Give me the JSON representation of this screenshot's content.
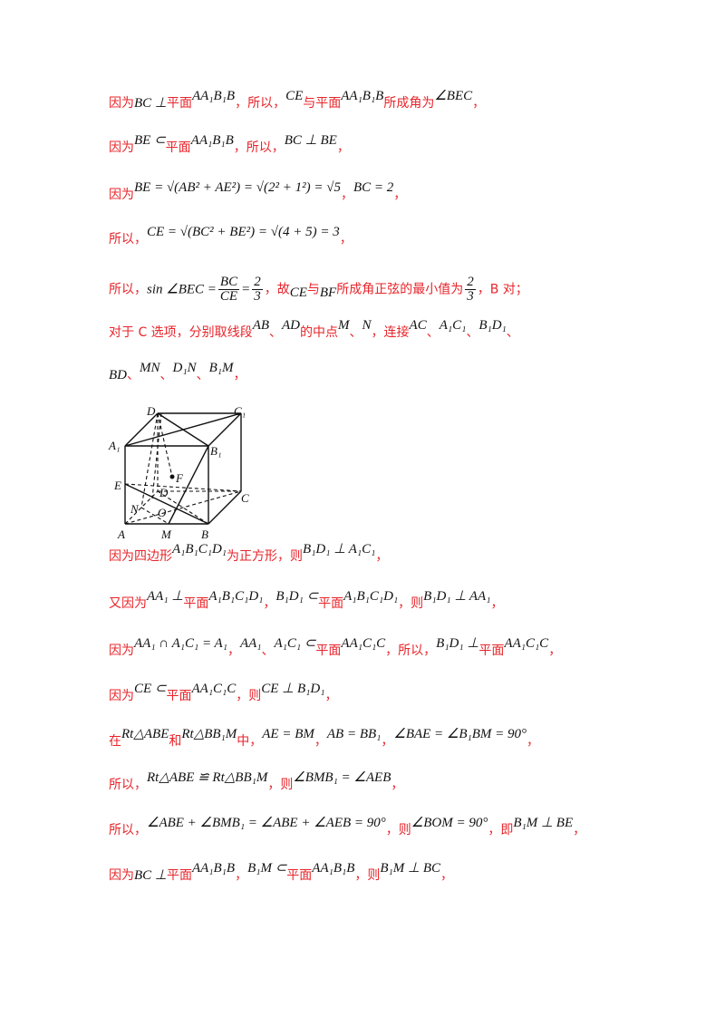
{
  "lines": [
    {
      "parts": [
        [
          "cn",
          "因为"
        ],
        [
          "m",
          "BC ⊥"
        ],
        [
          "cn",
          "平面"
        ],
        [
          "mu",
          "AA₁B₁B"
        ],
        [
          "cn",
          "，所以，"
        ],
        [
          "mu",
          "CE"
        ],
        [
          "cn",
          "与平面"
        ],
        [
          "mu",
          "AA₁B₁B"
        ],
        [
          "cn",
          "所成角为"
        ],
        [
          "mu",
          "∠BEC"
        ],
        [
          "cn",
          "，"
        ]
      ]
    },
    {
      "parts": [
        [
          "cn",
          "因为"
        ],
        [
          "mu",
          "BE ⊂"
        ],
        [
          "cn",
          "平面"
        ],
        [
          "mu",
          "AA₁B₁B"
        ],
        [
          "cn",
          "，所以，"
        ],
        [
          "mu",
          "BC ⊥ BE"
        ],
        [
          "cn",
          "，"
        ]
      ]
    },
    {
      "parts": [
        [
          "cn",
          "因为"
        ],
        [
          "mu",
          "BE = √(AB² + AE²) = √(2² + 1²) = √5"
        ],
        [
          "cn",
          "，"
        ],
        [
          "mu",
          "BC = 2"
        ],
        [
          "cn",
          "，"
        ]
      ]
    },
    {
      "parts": [
        [
          "cn",
          "所以，"
        ],
        [
          "mu",
          "CE = √(BC² + BE²) = √(4 + 5) = 3"
        ],
        [
          "cn",
          "，"
        ]
      ]
    },
    {
      "parts": [
        [
          "cn",
          "所以，"
        ],
        [
          "m",
          "sin ∠BEC ="
        ],
        [
          "frac",
          "BC|CE"
        ],
        [
          "m",
          "="
        ],
        [
          "frac",
          "2|3"
        ],
        [
          "cn",
          "，故"
        ],
        [
          "md",
          "CE"
        ],
        [
          "cn",
          "与"
        ],
        [
          "md",
          "BF"
        ],
        [
          "cn",
          "所成角正弦的最小值为"
        ],
        [
          "frac",
          "2|3"
        ],
        [
          "cn",
          "，B 对；"
        ]
      ]
    },
    {
      "parts": [
        [
          "cn",
          "对于 C 选项，分别取线段"
        ],
        [
          "mu",
          "AB"
        ],
        [
          "cn",
          "、"
        ],
        [
          "mu",
          "AD"
        ],
        [
          "cn",
          "的中点"
        ],
        [
          "mu",
          "M"
        ],
        [
          "cn",
          "、"
        ],
        [
          "mu",
          "N"
        ],
        [
          "cn",
          "，连接"
        ],
        [
          "mu",
          "AC"
        ],
        [
          "cn",
          "、"
        ],
        [
          "mu",
          "A₁C₁"
        ],
        [
          "cn",
          "、"
        ],
        [
          "mu",
          "B₁D₁"
        ],
        [
          "cn",
          "、"
        ]
      ]
    },
    {
      "parts": [
        [
          "m",
          "BD"
        ],
        [
          "cn",
          "、"
        ],
        [
          "mu",
          "MN"
        ],
        [
          "cn",
          "、"
        ],
        [
          "mu",
          "D₁N"
        ],
        [
          "cn",
          "、"
        ],
        [
          "mu",
          "B₁M"
        ],
        [
          "cn",
          "，"
        ]
      ]
    },
    {
      "parts": [
        [
          "cn",
          "因为四边形"
        ],
        [
          "mu",
          "A₁B₁C₁D₁"
        ],
        [
          "cn",
          "为正方形，则"
        ],
        [
          "mu",
          "B₁D₁ ⊥ A₁C₁"
        ],
        [
          "cn",
          "，"
        ]
      ]
    },
    {
      "parts": [
        [
          "cn",
          "又因为"
        ],
        [
          "mu",
          "AA₁ ⊥"
        ],
        [
          "cn",
          "平面"
        ],
        [
          "mu",
          "A₁B₁C₁D₁"
        ],
        [
          "cn",
          "，"
        ],
        [
          "mu",
          "B₁D₁ ⊂"
        ],
        [
          "cn",
          "平面"
        ],
        [
          "mu",
          "A₁B₁C₁D₁"
        ],
        [
          "cn",
          "，则"
        ],
        [
          "mu",
          "B₁D₁ ⊥ AA₁"
        ],
        [
          "cn",
          "，"
        ]
      ]
    },
    {
      "parts": [
        [
          "cn",
          "因为"
        ],
        [
          "mu",
          "AA₁ ∩ A₁C₁ = A₁"
        ],
        [
          "cn",
          "，"
        ],
        [
          "mu",
          "AA₁"
        ],
        [
          "cn",
          "、"
        ],
        [
          "mu",
          "A₁C₁ ⊂"
        ],
        [
          "cn",
          "平面"
        ],
        [
          "mu",
          "AA₁C₁C"
        ],
        [
          "cn",
          "，所以，"
        ],
        [
          "mu",
          "B₁D₁ ⊥"
        ],
        [
          "cn",
          "平面"
        ],
        [
          "mu",
          "AA₁C₁C"
        ],
        [
          "cn",
          "，"
        ]
      ]
    },
    {
      "parts": [
        [
          "cn",
          "因为"
        ],
        [
          "mu",
          "CE ⊂"
        ],
        [
          "cn",
          "平面"
        ],
        [
          "mu",
          "AA₁C₁C"
        ],
        [
          "cn",
          "，则"
        ],
        [
          "mu",
          "CE ⊥ B₁D₁"
        ],
        [
          "cn",
          "，"
        ]
      ]
    },
    {
      "parts": [
        [
          "cn",
          "在"
        ],
        [
          "mu",
          "Rt△ABE"
        ],
        [
          "cn",
          "和"
        ],
        [
          "mu",
          "Rt△BB₁M"
        ],
        [
          "cn",
          "中，"
        ],
        [
          "mu",
          "AE = BM"
        ],
        [
          "cn",
          "，"
        ],
        [
          "mu",
          "AB = BB₁"
        ],
        [
          "cn",
          "，"
        ],
        [
          "mu",
          "∠BAE = ∠B₁BM = 90°"
        ],
        [
          "cn",
          "，"
        ]
      ]
    },
    {
      "parts": [
        [
          "cn",
          "所以，"
        ],
        [
          "mu",
          "Rt△ABE ≌ Rt△BB₁M"
        ],
        [
          "cn",
          "，则"
        ],
        [
          "mu",
          "∠BMB₁ = ∠AEB"
        ],
        [
          "cn",
          "，"
        ]
      ]
    },
    {
      "parts": [
        [
          "cn",
          "所以，"
        ],
        [
          "mu",
          "∠ABE + ∠BMB₁ = ∠ABE + ∠AEB = 90°"
        ],
        [
          "cn",
          "，则"
        ],
        [
          "mu",
          "∠BOM = 90°"
        ],
        [
          "cn",
          "，即"
        ],
        [
          "mu",
          "B₁M ⊥ BE"
        ],
        [
          "cn",
          "，"
        ]
      ]
    },
    {
      "parts": [
        [
          "cn",
          "因为"
        ],
        [
          "m",
          "BC ⊥"
        ],
        [
          "cn",
          "平面"
        ],
        [
          "mu",
          "AA₁B₁B"
        ],
        [
          "cn",
          "，"
        ],
        [
          "mu",
          "B₁M ⊂"
        ],
        [
          "cn",
          "平面"
        ],
        [
          "mu",
          "AA₁B₁B"
        ],
        [
          "cn",
          "，则"
        ],
        [
          "mu",
          "B₁M ⊥ BC"
        ],
        [
          "cn",
          "，"
        ]
      ]
    }
  ],
  "figure": {
    "labels": {
      "D1": "D₁",
      "C1": "C₁",
      "A1": "A₁",
      "B1": "B₁",
      "E": "E",
      "F": "F",
      "D": "D",
      "C": "C",
      "N": "N",
      "O": "O",
      "A": "A",
      "M": "M",
      "B": "B"
    }
  }
}
